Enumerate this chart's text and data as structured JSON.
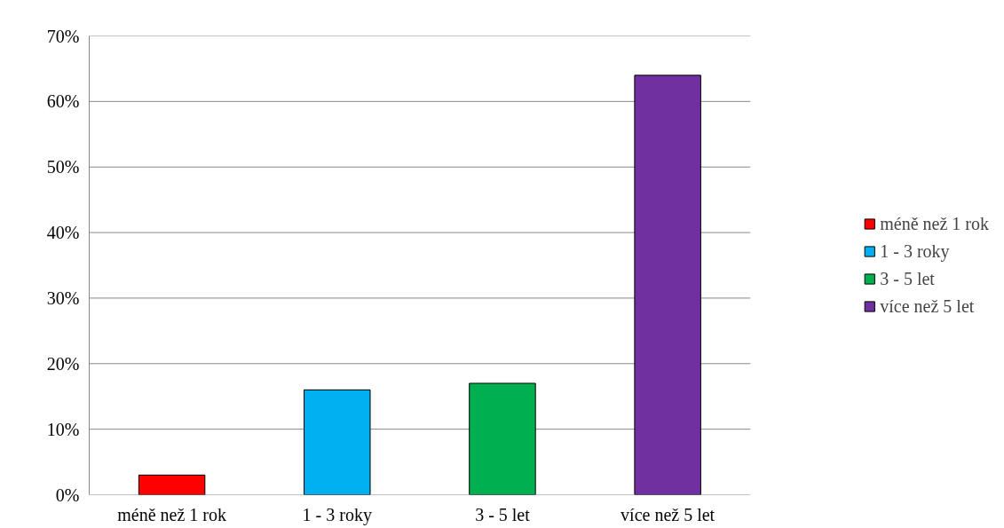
{
  "chart_data": {
    "type": "bar",
    "categories": [
      "méně než 1 rok",
      "1 - 3 roky",
      "3 - 5 let",
      "více než 5 let"
    ],
    "series": [
      {
        "name": "méně než 1 rok",
        "color": "#ff0000",
        "values": [
          3,
          null,
          null,
          null
        ]
      },
      {
        "name": "1 - 3 roky",
        "color": "#00b0f0",
        "values": [
          null,
          16,
          null,
          null
        ]
      },
      {
        "name": "3 - 5 let",
        "color": "#00b050",
        "values": [
          null,
          null,
          17,
          null
        ]
      },
      {
        "name": "více než 5 let",
        "color": "#7030a0",
        "values": [
          null,
          null,
          null,
          64
        ]
      }
    ],
    "ylim": [
      0,
      70
    ],
    "yticks": [
      {
        "value": 0,
        "label": "0%"
      },
      {
        "value": 10,
        "label": "10%"
      },
      {
        "value": 20,
        "label": "20%"
      },
      {
        "value": 30,
        "label": "30%"
      },
      {
        "value": 40,
        "label": "40%"
      },
      {
        "value": 50,
        "label": "50%"
      },
      {
        "value": 60,
        "label": "60%"
      },
      {
        "value": 70,
        "label": "70%"
      }
    ],
    "grid": "y",
    "legend": "right"
  }
}
